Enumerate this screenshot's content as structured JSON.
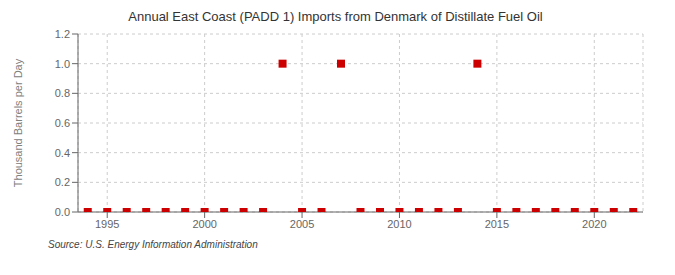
{
  "chart_data": {
    "type": "scatter",
    "title": "Annual East Coast (PADD 1) Imports from Denmark of Distillate Fuel Oil",
    "ylabel": "Thousand Barrels per Day",
    "annotations": [
      "Source: U.S. Energy Information Administration"
    ],
    "x": [
      1994,
      1995,
      1996,
      1997,
      1998,
      1999,
      2000,
      2001,
      2002,
      2003,
      2004,
      2005,
      2006,
      2007,
      2008,
      2009,
      2010,
      2011,
      2012,
      2013,
      2014,
      2015,
      2016,
      2017,
      2018,
      2019,
      2020,
      2021,
      2022
    ],
    "values": [
      0,
      0,
      0,
      0,
      0,
      0,
      0,
      0,
      0,
      0,
      1,
      0,
      0,
      1,
      0,
      0,
      0,
      0,
      0,
      0,
      1,
      0,
      0,
      0,
      0,
      0,
      0,
      0,
      0
    ],
    "color": "#cc0000",
    "marker": "square",
    "xlim": [
      1993.5,
      2022.5
    ],
    "xticks": [
      1995,
      2000,
      2005,
      2010,
      2015,
      2020
    ],
    "ylim": [
      0.0,
      1.2
    ],
    "yticks": [
      {
        "value": 0,
        "label": "0.0"
      },
      0.2,
      0.4,
      0.6,
      0.8,
      {
        "value": 1,
        "label": "1.0"
      },
      1.2
    ],
    "grid": true
  }
}
